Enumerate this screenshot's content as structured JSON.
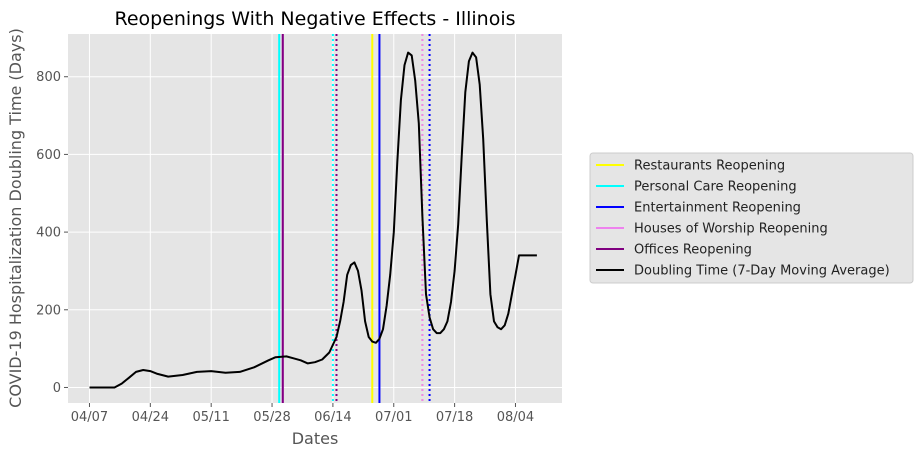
{
  "chart_data": {
    "type": "line",
    "title": "Reopenings With Negative Effects - Illinois",
    "xlabel": "Dates",
    "ylabel": "COVID-19 Hospitalization Doubling Time (Days)",
    "x_ticks": [
      "04/07",
      "04/24",
      "05/11",
      "05/28",
      "06/14",
      "07/01",
      "07/18",
      "08/04"
    ],
    "y_ticks": [
      0,
      200,
      400,
      600,
      800
    ],
    "ylim": [
      -40,
      910
    ],
    "xlim_days": [
      -6,
      132
    ],
    "grid": true,
    "legend_position": "right",
    "background": "#e5e5e5",
    "series": [
      {
        "name": "Doubling Time (7-Day Moving Average)",
        "color": "#000000",
        "x": [
          "04/07",
          "04/11",
          "04/14",
          "04/16",
          "04/18",
          "04/20",
          "04/22",
          "04/24",
          "04/26",
          "04/29",
          "05/03",
          "05/07",
          "05/11",
          "05/15",
          "05/19",
          "05/23",
          "05/27",
          "05/29",
          "06/01",
          "06/03",
          "06/05",
          "06/07",
          "06/09",
          "06/11",
          "06/13",
          "06/15",
          "06/16",
          "06/17",
          "06/18",
          "06/19",
          "06/20",
          "06/21",
          "06/22",
          "06/23",
          "06/24",
          "06/25",
          "06/26",
          "06/27",
          "06/28",
          "06/29",
          "06/30",
          "07/01",
          "07/02",
          "07/03",
          "07/04",
          "07/05",
          "07/06",
          "07/07",
          "07/08",
          "07/09",
          "07/10",
          "07/11",
          "07/12",
          "07/13",
          "07/14",
          "07/15",
          "07/16",
          "07/17",
          "07/18",
          "07/19",
          "07/20",
          "07/21",
          "07/22",
          "07/23",
          "07/24",
          "07/25",
          "07/26",
          "07/27",
          "07/28",
          "07/29",
          "07/30",
          "07/31",
          "08/01",
          "08/02",
          "08/03",
          "08/04",
          "08/05",
          "08/06",
          "08/07",
          "08/08",
          "08/09",
          "08/10"
        ],
        "values": [
          0,
          0,
          0,
          10,
          25,
          40,
          45,
          42,
          35,
          28,
          32,
          40,
          42,
          38,
          40,
          52,
          70,
          78,
          80,
          75,
          70,
          62,
          65,
          72,
          90,
          130,
          170,
          220,
          290,
          315,
          322,
          300,
          250,
          170,
          130,
          118,
          115,
          125,
          150,
          210,
          290,
          400,
          580,
          740,
          830,
          862,
          855,
          790,
          680,
          440,
          240,
          180,
          150,
          140,
          140,
          150,
          170,
          220,
          300,
          420,
          600,
          760,
          840,
          862,
          850,
          780,
          640,
          430,
          240,
          170,
          155,
          150,
          160,
          190,
          240,
          290,
          340,
          340,
          340,
          340,
          340,
          340
        ]
      }
    ],
    "vertical_lines": [
      {
        "name": "Restaurants Reopening",
        "color": "#ffff00",
        "style": "solid",
        "date": "06/25"
      },
      {
        "name": "Restaurants Reopening",
        "color": "#ffff00",
        "style": "dotted",
        "date": "07/09"
      },
      {
        "name": "Personal Care Reopening",
        "color": "#00ffff",
        "style": "solid",
        "date": "05/30"
      },
      {
        "name": "Personal Care Reopening",
        "color": "#00ffff",
        "style": "dotted",
        "date": "06/14"
      },
      {
        "name": "Entertainment Reopening",
        "color": "#0000ff",
        "style": "solid",
        "date": "06/27"
      },
      {
        "name": "Entertainment Reopening",
        "color": "#0000ff",
        "style": "dotted",
        "date": "07/11"
      },
      {
        "name": "Houses of Worship Reopening",
        "color": "#ee82ee",
        "style": "solid",
        "date": "05/31"
      },
      {
        "name": "Houses of Worship Reopening",
        "color": "#ee82ee",
        "style": "dotted",
        "date": "07/09"
      },
      {
        "name": "Offices Reopening",
        "color": "#800080",
        "style": "solid",
        "date": "05/31"
      },
      {
        "name": "Offices Reopening",
        "color": "#800080",
        "style": "dotted",
        "date": "06/15"
      }
    ],
    "legend": [
      {
        "label": "Restaurants Reopening",
        "color": "#ffff00"
      },
      {
        "label": "Personal Care Reopening",
        "color": "#00ffff"
      },
      {
        "label": "Entertainment Reopening",
        "color": "#0000ff"
      },
      {
        "label": "Houses of Worship Reopening",
        "color": "#ee82ee"
      },
      {
        "label": "Offices Reopening",
        "color": "#800080"
      },
      {
        "label": "Doubling Time (7-Day Moving Average)",
        "color": "#000000"
      }
    ]
  }
}
